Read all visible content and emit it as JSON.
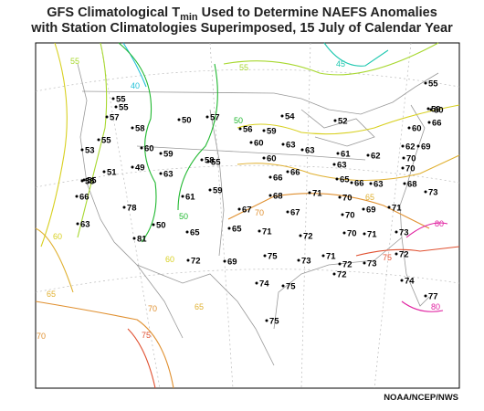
{
  "header": {
    "title_pre": "GFS Climatological T",
    "title_sub": "min",
    "title_post": " Used to Determine NAEFS Anomalies",
    "subtitle": "with Station Climatologies Superimposed, 15 July of Calendar Year"
  },
  "footer": {
    "credit": "NOAA/NCEP/NWS"
  },
  "contours": [
    {
      "label": "40",
      "color": "#20c0d8"
    },
    {
      "label": "45",
      "color": "#20c8b0"
    },
    {
      "label": "50",
      "color": "#20b830"
    },
    {
      "label": "55",
      "color": "#a8d830"
    },
    {
      "label": "60",
      "color": "#d8d020"
    },
    {
      "label": "65",
      "color": "#e0b030"
    },
    {
      "label": "70",
      "color": "#e09030"
    },
    {
      "label": "75",
      "color": "#e05030"
    },
    {
      "label": "80",
      "color": "#e020a0"
    }
  ],
  "stations": [
    {
      "v": "55"
    },
    {
      "v": "55"
    },
    {
      "v": "57"
    },
    {
      "v": "58"
    },
    {
      "v": "50"
    },
    {
      "v": "57"
    },
    {
      "v": "56"
    },
    {
      "v": "59"
    },
    {
      "v": "54"
    },
    {
      "v": "52"
    },
    {
      "v": "55"
    },
    {
      "v": "60"
    },
    {
      "v": "59"
    },
    {
      "v": "66"
    },
    {
      "v": "55"
    },
    {
      "v": "60"
    },
    {
      "v": "59"
    },
    {
      "v": "60"
    },
    {
      "v": "63"
    },
    {
      "v": "63"
    },
    {
      "v": "61"
    },
    {
      "v": "62"
    },
    {
      "v": "60"
    },
    {
      "v": "62"
    },
    {
      "v": "69"
    },
    {
      "v": "53"
    },
    {
      "v": "55"
    },
    {
      "v": "58"
    },
    {
      "v": "60"
    },
    {
      "v": "63"
    },
    {
      "v": "70"
    },
    {
      "v": "70"
    },
    {
      "v": "55"
    },
    {
      "v": "51"
    },
    {
      "v": "49"
    },
    {
      "v": "63"
    },
    {
      "v": "55"
    },
    {
      "v": "66"
    },
    {
      "v": "66"
    },
    {
      "v": "65"
    },
    {
      "v": "66"
    },
    {
      "v": "63"
    },
    {
      "v": "68"
    },
    {
      "v": "66"
    },
    {
      "v": "61"
    },
    {
      "v": "59"
    },
    {
      "v": "68"
    },
    {
      "v": "71"
    },
    {
      "v": "70"
    },
    {
      "v": "73"
    },
    {
      "v": "78"
    },
    {
      "v": "67"
    },
    {
      "v": "67"
    },
    {
      "v": "70"
    },
    {
      "v": "69"
    },
    {
      "v": "71"
    },
    {
      "v": "63"
    },
    {
      "v": "50"
    },
    {
      "v": "65"
    },
    {
      "v": "65"
    },
    {
      "v": "71"
    },
    {
      "v": "72"
    },
    {
      "v": "70"
    },
    {
      "v": "71"
    },
    {
      "v": "73"
    },
    {
      "v": "81"
    },
    {
      "v": "75"
    },
    {
      "v": "71"
    },
    {
      "v": "72"
    },
    {
      "v": "72"
    },
    {
      "v": "69"
    },
    {
      "v": "73"
    },
    {
      "v": "72"
    },
    {
      "v": "73"
    },
    {
      "v": "74"
    },
    {
      "v": "75"
    },
    {
      "v": "72"
    },
    {
      "v": "74"
    },
    {
      "v": "77"
    },
    {
      "v": "75"
    }
  ]
}
